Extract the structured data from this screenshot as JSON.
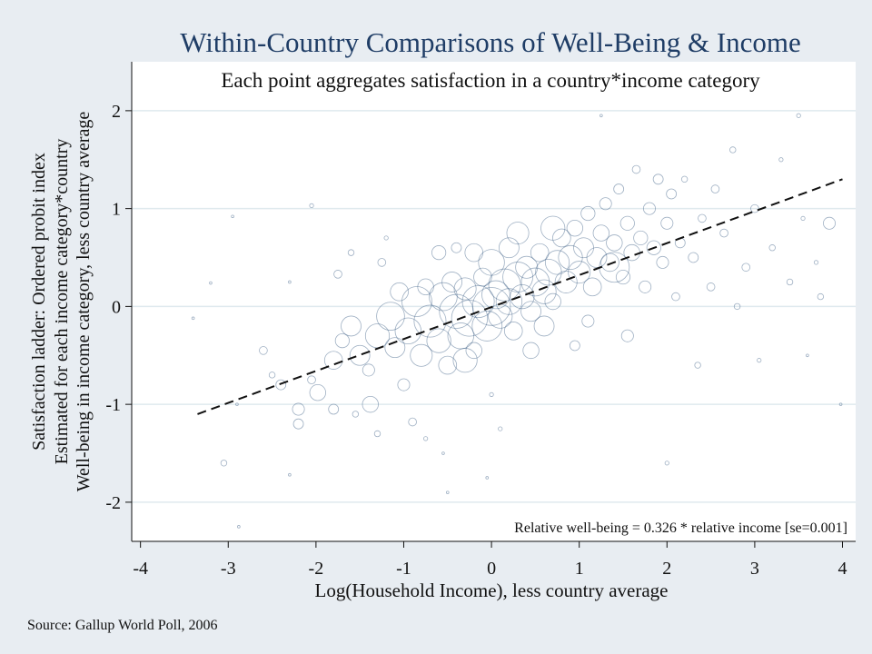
{
  "colors": {
    "background": "#e8edf2",
    "plot_background": "#ffffff",
    "gridline": "#dfe9ee",
    "title": "#1f3d66",
    "points": "#2b4f7a",
    "fit_line": "#111111",
    "text": "#111111"
  },
  "chart_data": {
    "type": "scatter",
    "title": "Within-Country Comparisons of Well-Being & Income",
    "subtitle": "Each point aggregates satisfaction in a country*income category",
    "xlabel": "Log(Household Income), less country average",
    "ylabel": [
      "Satisfaction ladder: Ordered probit index",
      "Estimated for each income category*country",
      "Well-being in income category, less country average"
    ],
    "annotation": "Relative well-being = 0.326 * relative income [se=0.001]",
    "source": "Source: Gallup World Poll, 2006",
    "xlim": [
      -4.1,
      4.15
    ],
    "ylim": [
      -2.4,
      2.5
    ],
    "xticks": [
      -4,
      -3,
      -2,
      -1,
      0,
      1,
      2,
      3,
      4
    ],
    "yticks": [
      -2,
      -1,
      0,
      1,
      2
    ],
    "grid": true,
    "fit_line": {
      "slope": 0.326,
      "x_start": -3.35,
      "y_start": -1.1,
      "x_end": 4.0,
      "y_end": 1.3
    },
    "points": [
      [
        -3.4,
        -0.12,
        1
      ],
      [
        -3.2,
        0.24,
        1
      ],
      [
        -2.95,
        0.92,
        1
      ],
      [
        -2.3,
        0.25,
        1
      ],
      [
        -3.05,
        -1.6,
        3
      ],
      [
        -2.9,
        -1.0,
        1
      ],
      [
        -2.88,
        -2.25,
        1
      ],
      [
        -2.3,
        -1.72,
        1
      ],
      [
        -2.05,
        1.03,
        2
      ],
      [
        -2.05,
        -0.75,
        4
      ],
      [
        -2.2,
        -1.2,
        5
      ],
      [
        -2.2,
        -1.05,
        6
      ],
      [
        -1.98,
        -0.88,
        8
      ],
      [
        -1.8,
        -0.55,
        9
      ],
      [
        -1.75,
        0.33,
        4
      ],
      [
        -1.7,
        -0.35,
        7
      ],
      [
        -1.6,
        -0.2,
        10
      ],
      [
        -1.55,
        -1.1,
        3
      ],
      [
        -1.4,
        -0.65,
        6
      ],
      [
        -1.38,
        -1.0,
        8
      ],
      [
        -1.3,
        -0.3,
        12
      ],
      [
        -1.15,
        -0.1,
        14
      ],
      [
        -1.1,
        -0.42,
        10
      ],
      [
        -1.05,
        0.15,
        9
      ],
      [
        -1.0,
        -0.8,
        6
      ],
      [
        -0.95,
        -0.25,
        13
      ],
      [
        -0.9,
        -1.18,
        4
      ],
      [
        -0.85,
        0.05,
        15
      ],
      [
        -0.8,
        -0.5,
        11
      ],
      [
        -0.75,
        0.2,
        8
      ],
      [
        -0.7,
        -0.15,
        16
      ],
      [
        -0.6,
        -0.35,
        12
      ],
      [
        -0.55,
        0.1,
        14
      ],
      [
        -0.5,
        -0.6,
        9
      ],
      [
        -0.45,
        0.25,
        10
      ],
      [
        -0.4,
        -0.05,
        17
      ],
      [
        -0.35,
        -0.3,
        13
      ],
      [
        -0.3,
        0.18,
        11
      ],
      [
        -0.25,
        -0.12,
        18
      ],
      [
        -0.2,
        -0.45,
        8
      ],
      [
        -0.15,
        0.05,
        16
      ],
      [
        -0.1,
        0.3,
        9
      ],
      [
        -0.05,
        -0.2,
        15
      ],
      [
        0.0,
        0.0,
        19
      ],
      [
        0.05,
        0.12,
        14
      ],
      [
        0.1,
        -0.1,
        12
      ],
      [
        0.15,
        0.22,
        16
      ],
      [
        0.2,
        0.05,
        13
      ],
      [
        0.25,
        -0.25,
        9
      ],
      [
        0.3,
        0.3,
        15
      ],
      [
        0.35,
        0.1,
        12
      ],
      [
        0.4,
        0.4,
        11
      ],
      [
        0.45,
        -0.05,
        10
      ],
      [
        0.5,
        0.25,
        14
      ],
      [
        0.55,
        0.55,
        9
      ],
      [
        0.6,
        0.15,
        12
      ],
      [
        0.65,
        0.35,
        13
      ],
      [
        0.7,
        0.05,
        8
      ],
      [
        0.75,
        0.45,
        12
      ],
      [
        0.8,
        0.7,
        9
      ],
      [
        0.85,
        0.25,
        11
      ],
      [
        0.9,
        0.5,
        12
      ],
      [
        0.95,
        0.8,
        8
      ],
      [
        1.0,
        0.35,
        11
      ],
      [
        1.05,
        0.6,
        10
      ],
      [
        1.1,
        0.95,
        7
      ],
      [
        1.15,
        0.2,
        9
      ],
      [
        1.2,
        0.5,
        10
      ],
      [
        1.25,
        0.75,
        8
      ],
      [
        1.3,
        1.05,
        6
      ],
      [
        1.35,
        0.45,
        9
      ],
      [
        1.4,
        0.65,
        8
      ],
      [
        1.45,
        1.2,
        5
      ],
      [
        1.5,
        0.3,
        7
      ],
      [
        1.55,
        0.85,
        7
      ],
      [
        1.6,
        0.55,
        8
      ],
      [
        1.65,
        1.4,
        4
      ],
      [
        1.7,
        0.7,
        7
      ],
      [
        1.75,
        0.2,
        6
      ],
      [
        1.8,
        1.0,
        6
      ],
      [
        1.85,
        0.6,
        7
      ],
      [
        1.9,
        1.3,
        5
      ],
      [
        1.95,
        0.45,
        6
      ],
      [
        2.0,
        0.85,
        6
      ],
      [
        2.05,
        1.15,
        5
      ],
      [
        2.1,
        0.1,
        4
      ],
      [
        2.15,
        0.65,
        5
      ],
      [
        2.2,
        1.3,
        3
      ],
      [
        2.3,
        0.5,
        5
      ],
      [
        2.4,
        0.9,
        4
      ],
      [
        2.5,
        0.2,
        4
      ],
      [
        2.55,
        1.2,
        4
      ],
      [
        2.65,
        0.75,
        4
      ],
      [
        2.75,
        1.6,
        3
      ],
      [
        2.8,
        0.0,
        3
      ],
      [
        2.9,
        0.4,
        4
      ],
      [
        3.0,
        1.0,
        4
      ],
      [
        3.05,
        -0.55,
        2
      ],
      [
        3.2,
        0.6,
        3
      ],
      [
        3.3,
        1.5,
        2
      ],
      [
        3.4,
        0.25,
        3
      ],
      [
        3.55,
        0.9,
        2
      ],
      [
        3.6,
        -0.5,
        1
      ],
      [
        3.7,
        0.45,
        2
      ],
      [
        3.85,
        0.85,
        6
      ],
      [
        3.75,
        0.1,
        3
      ],
      [
        3.5,
        1.95,
        2
      ],
      [
        3.98,
        -1.0,
        1
      ],
      [
        1.25,
        1.95,
        1
      ],
      [
        2.0,
        -1.6,
        2
      ],
      [
        -0.75,
        -1.35,
        2
      ],
      [
        -0.5,
        -1.9,
        1
      ],
      [
        0.0,
        -0.9,
        2
      ],
      [
        0.1,
        -1.25,
        2
      ],
      [
        -0.05,
        -1.75,
        1
      ],
      [
        -0.55,
        -1.5,
        1
      ],
      [
        -1.2,
        0.7,
        2
      ],
      [
        -1.6,
        0.55,
        3
      ],
      [
        -2.5,
        -0.7,
        3
      ],
      [
        -2.6,
        -0.45,
        4
      ],
      [
        -2.4,
        -0.8,
        5
      ],
      [
        0.3,
        0.75,
        11
      ],
      [
        0.7,
        0.8,
        12
      ],
      [
        1.4,
        0.4,
        15
      ],
      [
        1.1,
        -0.15,
        6
      ],
      [
        -0.2,
        0.55,
        9
      ],
      [
        -0.6,
        0.55,
        7
      ],
      [
        0.45,
        -0.45,
        8
      ],
      [
        -1.5,
        -0.5,
        10
      ],
      [
        -1.25,
        0.45,
        4
      ],
      [
        -1.8,
        -1.05,
        5
      ],
      [
        -1.3,
        -1.3,
        3
      ],
      [
        0.95,
        -0.4,
        5
      ],
      [
        1.55,
        -0.3,
        6
      ],
      [
        2.35,
        -0.6,
        3
      ],
      [
        -0.4,
        0.6,
        5
      ],
      [
        0.2,
        0.6,
        10
      ],
      [
        0.0,
        0.45,
        13
      ],
      [
        -0.3,
        -0.55,
        12
      ],
      [
        0.6,
        -0.2,
        10
      ]
    ]
  }
}
